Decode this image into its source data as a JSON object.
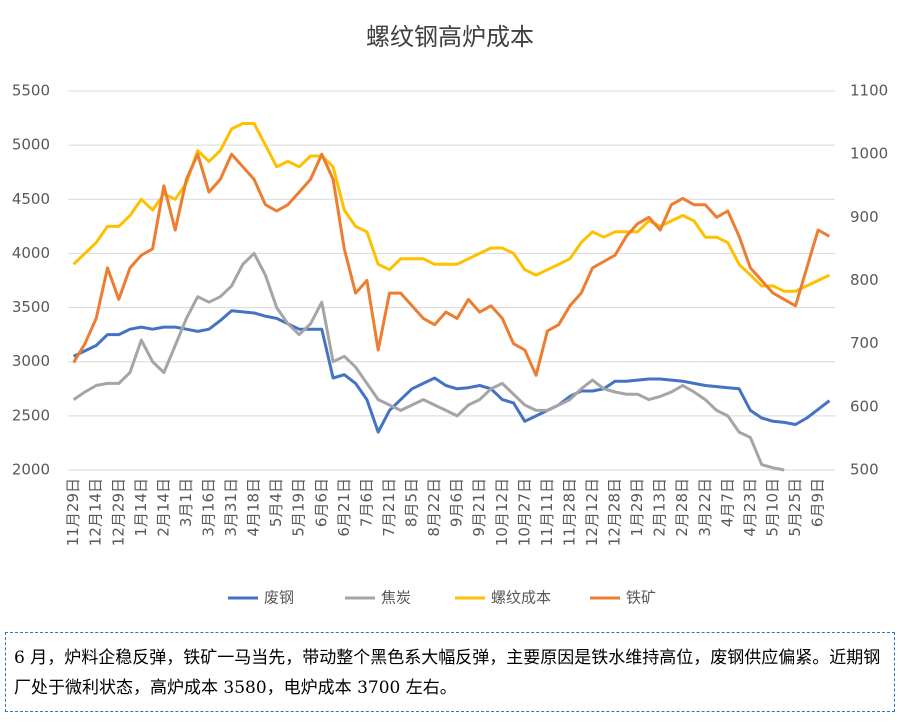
{
  "chart_data": {
    "type": "line",
    "title": "螺纹钢高炉成本",
    "categories": [
      "11月29日",
      null,
      "12月14日",
      null,
      "12月29日",
      null,
      "1月14日",
      null,
      "2月14日",
      null,
      "3月1日",
      null,
      "3月16日",
      null,
      "3月31日",
      null,
      "4月18日",
      null,
      "5月4日",
      null,
      "5月19日",
      null,
      "6月6日",
      null,
      "6月21日",
      null,
      "7月6日",
      null,
      "7月21日",
      null,
      "8月5日",
      null,
      "8月22日",
      null,
      "9月6日",
      null,
      "9月21日",
      null,
      "10月12日",
      null,
      "10月27日",
      null,
      "11月11日",
      null,
      "11月28日",
      null,
      "12月12日",
      null,
      "12月28日",
      null,
      "1月29日",
      null,
      "2月13日",
      null,
      "2月28日",
      null,
      "3月22日",
      null,
      "4月7日",
      null,
      "4月23日",
      null,
      "5月10日",
      null,
      "5月25日",
      null,
      "6月9日",
      null
    ],
    "series": [
      {
        "name": "废钢",
        "color": "#4472c4",
        "values": [
          3050,
          3100,
          3150,
          3250,
          3250,
          3300,
          3320,
          3300,
          3320,
          3320,
          3300,
          3280,
          3300,
          3380,
          3470,
          3460,
          3450,
          3420,
          3400,
          3350,
          3300,
          3300,
          3300,
          2850,
          2880,
          2800,
          2650,
          2350,
          2550,
          2650,
          2750,
          2800,
          2850,
          2780,
          2750,
          2760,
          2780,
          2750,
          2650,
          2620,
          2450,
          2500,
          2550,
          2600,
          2680,
          2730,
          2730,
          2750,
          2820,
          2820,
          2830,
          2840,
          2840,
          2830,
          2820,
          2800,
          2780,
          2770,
          2760,
          2750,
          2550,
          2480,
          2450,
          2440,
          2420,
          2480,
          2560,
          2640
        ]
      },
      {
        "name": "焦炭",
        "color": "#a5a5a5",
        "values": [
          2650,
          2720,
          2780,
          2800,
          2800,
          2900,
          3200,
          3000,
          2900,
          3150,
          3400,
          3600,
          3550,
          3600,
          3700,
          3900,
          4000,
          3800,
          3500,
          3350,
          3250,
          3350,
          3550,
          3000,
          3050,
          2950,
          2800,
          2650,
          2600,
          2550,
          2600,
          2650,
          2600,
          2550,
          2500,
          2600,
          2650,
          2750,
          2800,
          2700,
          2600,
          2550,
          2550,
          2600,
          2650,
          2750,
          2830,
          2750,
          2720,
          2700,
          2700,
          2650,
          2680,
          2720,
          2780,
          2720,
          2650,
          2550,
          2500,
          2350,
          2300,
          2050,
          2020,
          2000,
          null,
          null,
          null,
          null
        ]
      },
      {
        "name": "螺纹成本",
        "color": "#ffc000",
        "values": [
          3900,
          4000,
          4100,
          4250,
          4250,
          4350,
          4500,
          4400,
          4550,
          4500,
          4650,
          4950,
          4850,
          4950,
          5150,
          5200,
          5200,
          5000,
          4800,
          4850,
          4800,
          4900,
          4900,
          4800,
          4400,
          4250,
          4200,
          3900,
          3850,
          3950,
          3950,
          3950,
          3900,
          3900,
          3900,
          3950,
          4000,
          4050,
          4050,
          4000,
          3850,
          3800,
          3850,
          3900,
          3950,
          4100,
          4200,
          4150,
          4200,
          4200,
          4200,
          4300,
          4250,
          4300,
          4350,
          4300,
          4150,
          4150,
          4100,
          3900,
          3800,
          3700,
          3700,
          3650,
          3650,
          3700,
          3750,
          3800
        ]
      },
      {
        "name": "铁矿",
        "color": "#ed7d31",
        "axis": "y2",
        "values": [
          670,
          700,
          740,
          820,
          770,
          820,
          840,
          850,
          950,
          880,
          960,
          1000,
          940,
          960,
          1000,
          980,
          960,
          920,
          910,
          920,
          940,
          960,
          1000,
          960,
          850,
          780,
          800,
          690,
          780,
          780,
          760,
          740,
          730,
          750,
          740,
          770,
          750,
          760,
          740,
          700,
          690,
          650,
          720,
          730,
          760,
          780,
          820,
          830,
          840,
          870,
          890,
          900,
          880,
          920,
          930,
          920,
          920,
          900,
          910,
          870,
          820,
          800,
          780,
          770,
          760,
          820,
          880,
          870
        ]
      }
    ],
    "ylim": [
      2000,
      5500
    ],
    "yticks": [
      2000,
      2500,
      3000,
      3500,
      4000,
      4500,
      5000,
      5500
    ],
    "y2lim": [
      500,
      1100
    ],
    "y2ticks": [
      500,
      600,
      700,
      800,
      900,
      1000,
      1100
    ],
    "grid": true,
    "legend": "bottom"
  },
  "note": "6 月，炉料企稳反弹，铁矿一马当先，带动整个黑色系大幅反弹，主要原因是铁水维持高位，废钢供应偏紧。近期钢厂处于微利状态，高炉成本 3580，电炉成本 3700 左右。"
}
